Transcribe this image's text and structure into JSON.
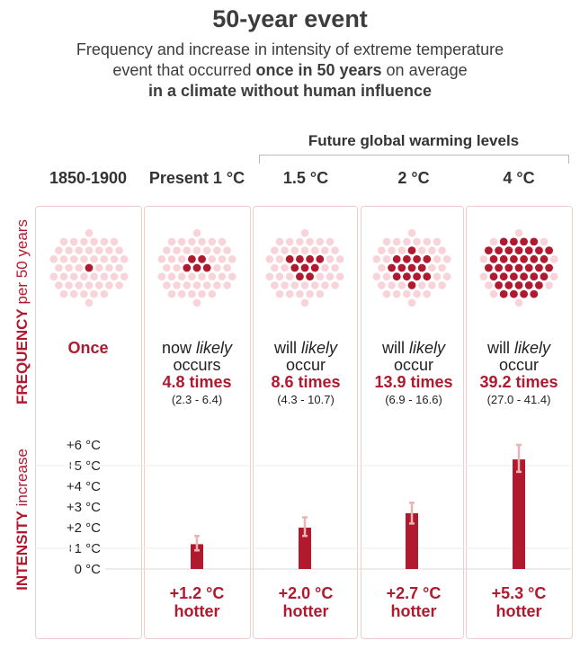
{
  "header": {
    "title": "50-year event",
    "subtitle_line1": "Frequency and increase in intensity of extreme temperature",
    "subtitle_line2_a": "event that occurred ",
    "subtitle_line2_b": "once in 50 years",
    "subtitle_line2_c": " on average",
    "subtitle_line3": "in a climate without human influence"
  },
  "future_label": "Future global warming levels",
  "side_labels": {
    "frequency_bold": "FREQUENCY",
    "frequency_light": " per 50 years",
    "intensity_bold": "INTENSITY",
    "intensity_light": " increase"
  },
  "columns": [
    {
      "header": "1850-1900",
      "freq_once": "Once"
    },
    {
      "header": "Present 1 °C",
      "freq_line1a": "now ",
      "freq_line1b": "likely",
      "freq_line2": "occurs",
      "freq_times": "4.8 times",
      "freq_range": "(2.3 - 6.4)",
      "hotter_value": "+1.2 °C",
      "hotter_word": "hotter"
    },
    {
      "header": "1.5 °C",
      "freq_line1a": "will ",
      "freq_line1b": "likely",
      "freq_line2": "occur",
      "freq_times": "8.6 times",
      "freq_range": "(4.3 - 10.7)",
      "hotter_value": "+2.0 °C",
      "hotter_word": "hotter"
    },
    {
      "header": "2 °C",
      "freq_line1a": "will ",
      "freq_line1b": "likely",
      "freq_line2": "occur",
      "freq_times": "13.9 times",
      "freq_range": "(6.9 - 16.6)",
      "hotter_value": "+2.7 °C",
      "hotter_word": "hotter"
    },
    {
      "header": "4 °C",
      "freq_line1a": "will ",
      "freq_line1b": "likely",
      "freq_line2": "occur",
      "freq_times": "39.2 times",
      "freq_range": "(27.0 - 41.4)",
      "hotter_value": "+5.3 °C",
      "hotter_word": "hotter"
    }
  ],
  "y_ticks": [
    "0 °C",
    "+1 °C",
    "+2 °C",
    "+3 °C",
    "+4 °C",
    "+5 °C",
    "+6 °C"
  ],
  "colors": {
    "accent": "#b0192e",
    "dot_light": "#f8d3da",
    "panel_border": "#f2cbcb",
    "error_bar": "#e8b4b4"
  },
  "chart_data": [
    {
      "type": "scatter",
      "title": "FREQUENCY per 50 years",
      "categories": [
        "1850-1900",
        "Present 1 °C",
        "1.5 °C",
        "2 °C",
        "4 °C"
      ],
      "values": [
        1,
        4.8,
        8.6,
        13.9,
        39.2
      ],
      "ranges": [
        null,
        [
          2.3,
          6.4
        ],
        [
          4.3,
          10.7
        ],
        [
          6.9,
          16.6
        ],
        [
          27.0,
          41.4
        ]
      ],
      "dots_total": 50
    },
    {
      "type": "bar",
      "title": "INTENSITY increase",
      "categories": [
        "1850-1900",
        "Present 1 °C",
        "1.5 °C",
        "2 °C",
        "4 °C"
      ],
      "values": [
        0,
        1.2,
        2.0,
        2.7,
        5.3
      ],
      "error_low": [
        0,
        0.9,
        1.6,
        2.2,
        4.7
      ],
      "error_high": [
        0,
        1.6,
        2.5,
        3.2,
        6.0
      ],
      "ylabel": "INTENSITY increase",
      "ylim": [
        0,
        6
      ],
      "grid": true
    }
  ]
}
